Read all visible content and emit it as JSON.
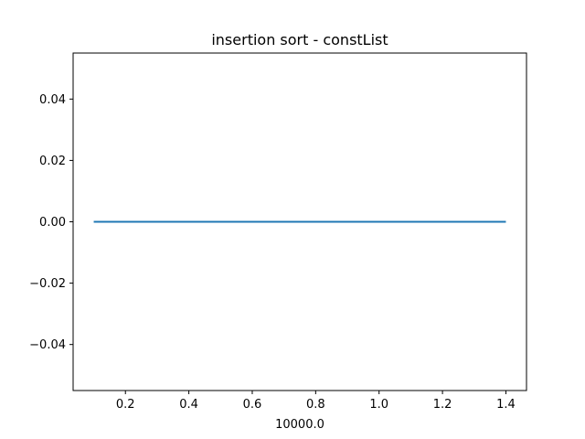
{
  "chart_data": {
    "type": "line",
    "title": "insertion sort - constList",
    "xlabel": "",
    "ylabel": "",
    "x_offset_label": "10000.0",
    "xlim": [
      0.035,
      1.465
    ],
    "ylim": [
      -0.055,
      0.055
    ],
    "xticks": [
      0.2,
      0.4,
      0.6,
      0.8,
      1.0,
      1.2,
      1.4
    ],
    "xtick_labels": [
      "0.2",
      "0.4",
      "0.6",
      "0.8",
      "1.0",
      "1.2",
      "1.4"
    ],
    "yticks": [
      -0.04,
      -0.02,
      0.0,
      0.02,
      0.04
    ],
    "ytick_labels": [
      "−0.04",
      "−0.02",
      "0.00",
      "0.02",
      "0.04"
    ],
    "grid": false,
    "series": [
      {
        "color": "#1f77b4",
        "x": [
          0.1,
          0.2,
          0.3,
          0.4,
          0.5,
          0.6,
          0.7,
          0.8,
          0.9,
          1.0,
          1.1,
          1.2,
          1.3,
          1.4
        ],
        "y": [
          0,
          0,
          0,
          0,
          0,
          0,
          0,
          0,
          0,
          0,
          0,
          0,
          0,
          0
        ]
      }
    ]
  }
}
